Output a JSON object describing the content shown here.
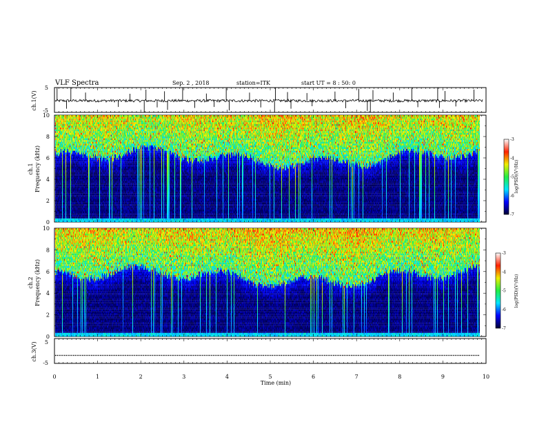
{
  "header": {
    "title": "VLF Spectra",
    "date": "Sep. 2 , 2018",
    "station": "station=ITK",
    "start": "start UT =  8 : 50: 0"
  },
  "chart_data": [
    {
      "type": "line",
      "panel": "ch1-waveform",
      "ylabel": "ch.1(V)",
      "ylim": [
        -5,
        5
      ],
      "yticks": [
        "5",
        "-5"
      ],
      "xlim": [
        0,
        10
      ],
      "baseline": -0.3,
      "spikes": [
        {
          "x": 0.06,
          "y": 4.8
        },
        {
          "x": 0.28,
          "y": -3.5
        },
        {
          "x": 0.38,
          "y": 5.0
        },
        {
          "x": 0.72,
          "y": 3.0
        },
        {
          "x": 1.48,
          "y": -2.8
        },
        {
          "x": 1.75,
          "y": 2.5
        },
        {
          "x": 2.08,
          "y": -5.0
        },
        {
          "x": 2.12,
          "y": 4.2
        },
        {
          "x": 2.38,
          "y": -3.0
        },
        {
          "x": 2.55,
          "y": 3.5
        },
        {
          "x": 2.62,
          "y": -4.0
        },
        {
          "x": 2.97,
          "y": 5.0
        },
        {
          "x": 3.25,
          "y": -3.2
        },
        {
          "x": 3.52,
          "y": 2.6
        },
        {
          "x": 3.7,
          "y": -2.8
        },
        {
          "x": 3.98,
          "y": 4.8
        },
        {
          "x": 4.05,
          "y": -4.2
        },
        {
          "x": 4.52,
          "y": 3.0
        },
        {
          "x": 4.78,
          "y": -3.0
        },
        {
          "x": 5.1,
          "y": -5.0
        },
        {
          "x": 5.12,
          "y": 4.9
        },
        {
          "x": 5.4,
          "y": 3.2
        },
        {
          "x": 5.48,
          "y": -3.5
        },
        {
          "x": 5.85,
          "y": 2.8
        },
        {
          "x": 5.97,
          "y": -2.5
        },
        {
          "x": 6.5,
          "y": 3.4
        },
        {
          "x": 6.75,
          "y": -3.3
        },
        {
          "x": 7.05,
          "y": 4.5
        },
        {
          "x": 7.25,
          "y": -4.4
        },
        {
          "x": 7.32,
          "y": -5.0
        },
        {
          "x": 7.38,
          "y": 4.0
        },
        {
          "x": 7.85,
          "y": 3.0
        },
        {
          "x": 8.28,
          "y": 4.8
        },
        {
          "x": 8.42,
          "y": -2.9
        },
        {
          "x": 8.88,
          "y": 5.0
        },
        {
          "x": 8.92,
          "y": -3.2
        },
        {
          "x": 9.05,
          "y": 3.6
        },
        {
          "x": 9.3,
          "y": -2.6
        },
        {
          "x": 9.72,
          "y": 4.2
        }
      ]
    },
    {
      "type": "heatmap",
      "panel": "ch1-spectrogram",
      "ylabel": "ch.1",
      "ylabel2": "Frequency (kHz)",
      "ylim": [
        0,
        10
      ],
      "yticks": [
        "0",
        "2",
        "4",
        "6",
        "8",
        "10"
      ],
      "xlim": [
        0,
        9.85
      ],
      "noise_floor_khz": 6.0,
      "colorbar": {
        "label": "log(PSD)(V²/Hz)",
        "range": [
          -7,
          -3
        ],
        "ticks": [
          "-3",
          "-4",
          "-5",
          "-6",
          "-7"
        ],
        "colors": [
          "#000033",
          "#0000ff",
          "#00e5ff",
          "#22ee44",
          "#eeee00",
          "#ff2200",
          "#ffffff"
        ]
      }
    },
    {
      "type": "heatmap",
      "panel": "ch2-spectrogram",
      "ylabel": "ch.2",
      "ylabel2": "Frequency (kHz)",
      "ylim": [
        0,
        10
      ],
      "yticks": [
        "0",
        "2",
        "4",
        "6",
        "8",
        "10"
      ],
      "xlim": [
        0,
        9.85
      ],
      "noise_floor_khz": 5.5,
      "colorbar": {
        "label": "log(PSD)(V²/Hz)",
        "range": [
          -7,
          -3
        ],
        "ticks": [
          "-3",
          "-4",
          "-5",
          "-6",
          "-7"
        ],
        "colors": [
          "#000033",
          "#0000ff",
          "#00e5ff",
          "#22ee44",
          "#eeee00",
          "#ff2200",
          "#ffffff"
        ]
      }
    },
    {
      "type": "line",
      "panel": "ch3-waveform",
      "ylabel": "ch.3(V)",
      "ylim": [
        -5,
        5
      ],
      "yticks": [
        "5",
        "-5"
      ],
      "xlim": [
        0,
        10
      ],
      "baseline": -1.8,
      "xlabel": "Time  (min)",
      "xticks": [
        "0",
        "1",
        "2",
        "3",
        "4",
        "5",
        "6",
        "7",
        "8",
        "9",
        "10"
      ]
    }
  ]
}
